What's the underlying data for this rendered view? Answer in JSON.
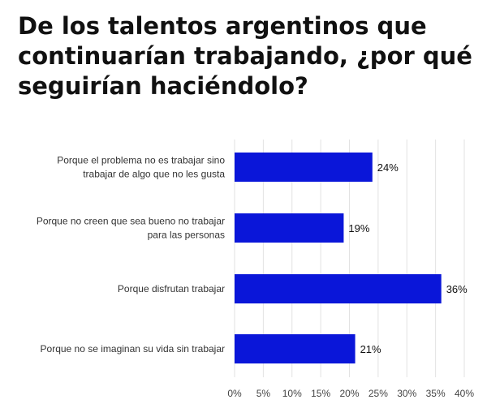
{
  "chart_data": {
    "type": "bar",
    "orientation": "horizontal",
    "title": "De los talentos argentinos que continuarían trabajando, ¿por qué seguirían haciéndolo?",
    "categories": [
      [
        "Porque el problema no es trabajar sino",
        "trabajar de algo que no les gusta"
      ],
      [
        "Porque no creen que sea bueno no trabajar",
        "para las personas"
      ],
      [
        "Porque disfrutan trabajar"
      ],
      [
        "Porque no se imaginan su vida sin trabajar"
      ]
    ],
    "values": [
      24,
      19,
      36,
      21
    ],
    "value_labels": [
      "24%",
      "19%",
      "36%",
      "21%"
    ],
    "xlim": [
      0,
      40
    ],
    "x_ticks": [
      0,
      5,
      10,
      15,
      20,
      25,
      30,
      35,
      40
    ],
    "x_tick_labels": [
      "0%",
      "5%",
      "10%",
      "15%",
      "20%",
      "25%",
      "30%",
      "35%",
      "40%"
    ],
    "grid": "vertical",
    "bar_color": "#0a16d9",
    "grid_color": "#e2e2e2"
  }
}
